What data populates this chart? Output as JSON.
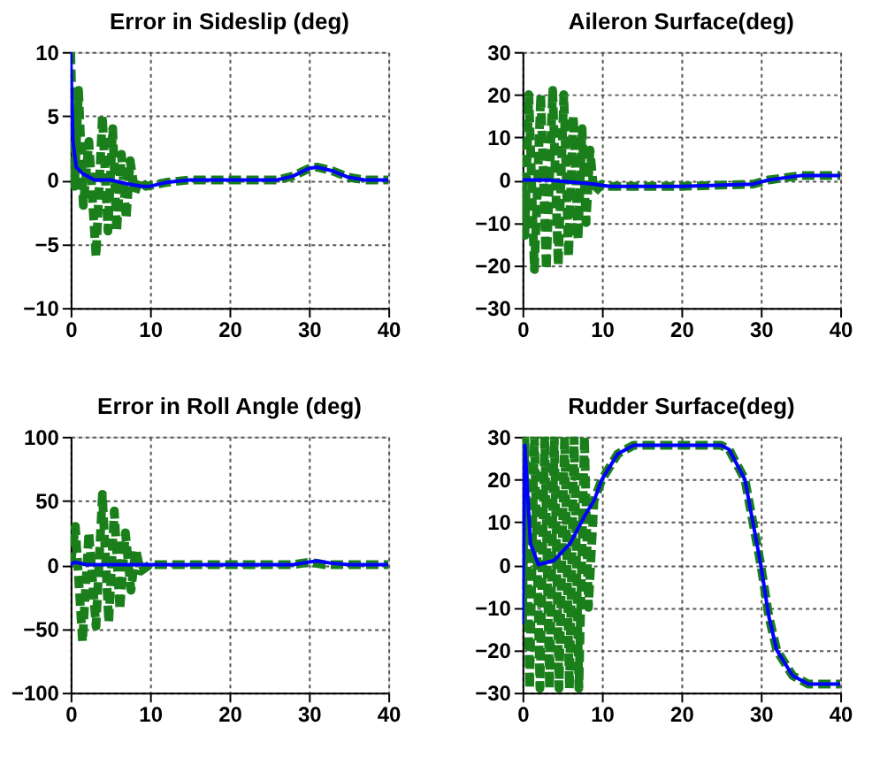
{
  "chart_data": [
    {
      "type": "line",
      "title": "Error in Sideslip (deg)",
      "xlim": [
        0,
        40
      ],
      "xticks": [
        0,
        10,
        20,
        30,
        40
      ],
      "ylim": [
        -10,
        10
      ],
      "yticks": [
        -10,
        -5,
        0,
        5,
        10
      ],
      "grid": true,
      "series": [
        {
          "color": "#0000ff",
          "line_style": "solid",
          "x": [
            0,
            0.3,
            0.7,
            1.5,
            3,
            5,
            7,
            9,
            10,
            12,
            15,
            26,
            28,
            30,
            31,
            33,
            35,
            37,
            40
          ],
          "values": [
            10,
            3,
            1,
            0.5,
            0,
            0,
            -0.3,
            -0.5,
            -0.5,
            -0.2,
            0,
            0,
            0.3,
            0.9,
            1,
            0.7,
            0.2,
            0,
            0
          ]
        },
        {
          "color": "#1a7f1a",
          "line_style": "dashed",
          "x": [
            0,
            0.5,
            1,
            1.6,
            2.3,
            3.2,
            4,
            4.7,
            5.3,
            5.8,
            6.4,
            7,
            7.5,
            8.1,
            8.6,
            9.5,
            12,
            15,
            20,
            26,
            28,
            30,
            31,
            33,
            35,
            37,
            40
          ],
          "values": [
            10,
            -0.5,
            7,
            -2,
            3,
            -6,
            5,
            -4,
            4,
            -4,
            2,
            -3,
            1.5,
            -1,
            0,
            -0.5,
            -0.2,
            0,
            0,
            0,
            0.3,
            0.9,
            1,
            0.7,
            0.2,
            0,
            0
          ]
        }
      ]
    },
    {
      "type": "line",
      "title": "Aileron Surface(deg)",
      "xlim": [
        0,
        40
      ],
      "xticks": [
        0,
        10,
        20,
        30,
        40
      ],
      "ylim": [
        -30,
        30
      ],
      "yticks": [
        -30,
        -20,
        -10,
        0,
        10,
        20,
        30
      ],
      "grid": true,
      "series": [
        {
          "color": "#0000ff",
          "line_style": "solid",
          "x": [
            0,
            3,
            6,
            9,
            11,
            20,
            29,
            31,
            35,
            40
          ],
          "values": [
            0,
            0,
            -0.5,
            -1,
            -1.5,
            -1.5,
            -1,
            0,
            1,
            1
          ]
        },
        {
          "color": "#1a7f1a",
          "line_style": "dashed",
          "x": [
            0,
            0.3,
            0.8,
            1.5,
            2.3,
            3,
            3.8,
            4.5,
            5.2,
            5.8,
            6.4,
            7,
            7.5,
            8,
            8.5,
            9,
            10,
            11,
            20,
            29,
            31,
            35,
            40
          ],
          "values": [
            0,
            -13,
            20,
            -21,
            20,
            -21,
            21,
            -20,
            20,
            -18,
            15,
            -14,
            12,
            -10,
            7,
            -3,
            -1,
            -1.5,
            -1.5,
            -1,
            0,
            1,
            1
          ]
        }
      ]
    },
    {
      "type": "line",
      "title": "Error in Roll Angle (deg)",
      "xlim": [
        0,
        40
      ],
      "xticks": [
        0,
        10,
        20,
        30,
        40
      ],
      "ylim": [
        -100,
        100
      ],
      "yticks": [
        -100,
        -50,
        0,
        50,
        100
      ],
      "grid": true,
      "series": [
        {
          "color": "#0000ff",
          "line_style": "solid",
          "x": [
            0,
            0.5,
            2,
            10,
            28,
            30,
            31,
            33,
            35,
            40
          ],
          "values": [
            0,
            2,
            0,
            0,
            0,
            2,
            3,
            1,
            0,
            0
          ]
        },
        {
          "color": "#1a7f1a",
          "line_style": "dashed",
          "x": [
            0,
            0.6,
            1.5,
            2.3,
            3.2,
            4,
            4.8,
            5.5,
            6.2,
            6.9,
            7.6,
            8.2,
            8.8,
            10,
            20,
            28,
            30,
            32,
            40
          ],
          "values": [
            0,
            30,
            -60,
            25,
            -48,
            55,
            -45,
            42,
            -35,
            25,
            -20,
            12,
            -5,
            0,
            0,
            0,
            2,
            0,
            0
          ]
        }
      ]
    },
    {
      "type": "line",
      "title": "Rudder Surface(deg)",
      "xlim": [
        0,
        40
      ],
      "xticks": [
        0,
        10,
        20,
        30,
        40
      ],
      "ylim": [
        -30,
        30
      ],
      "yticks": [
        -30,
        -20,
        -10,
        0,
        10,
        20,
        30
      ],
      "grid": true,
      "series": [
        {
          "color": "#0000ff",
          "line_style": "solid",
          "x": [
            0,
            0.3,
            1,
            2,
            4,
            6,
            8,
            9,
            10,
            12,
            14,
            25,
            26,
            28,
            29,
            30,
            31,
            32,
            34,
            36,
            40
          ],
          "values": [
            -14,
            28,
            5,
            0,
            1,
            5,
            12,
            15,
            20,
            26,
            28,
            28,
            27,
            20,
            10,
            0,
            -12,
            -20,
            -26,
            -28,
            -28
          ]
        },
        {
          "color": "#1a7f1a",
          "line_style": "dashed",
          "x": [
            0,
            0.3,
            0.9,
            1.5,
            2.2,
            2.8,
            3.4,
            4,
            4.6,
            5.3,
            5.9,
            6.5,
            7.1,
            7.8,
            8.3,
            9,
            10,
            12,
            14,
            25,
            26,
            28,
            29,
            30,
            31,
            32,
            34,
            36,
            40
          ],
          "values": [
            -14,
            30,
            -29,
            30,
            -29,
            30,
            -29,
            30,
            -29,
            30,
            -29,
            30,
            -29,
            30,
            -10,
            15,
            20,
            26,
            28,
            28,
            27,
            20,
            10,
            0,
            -12,
            -20,
            -26,
            -28,
            -28
          ]
        }
      ]
    }
  ]
}
